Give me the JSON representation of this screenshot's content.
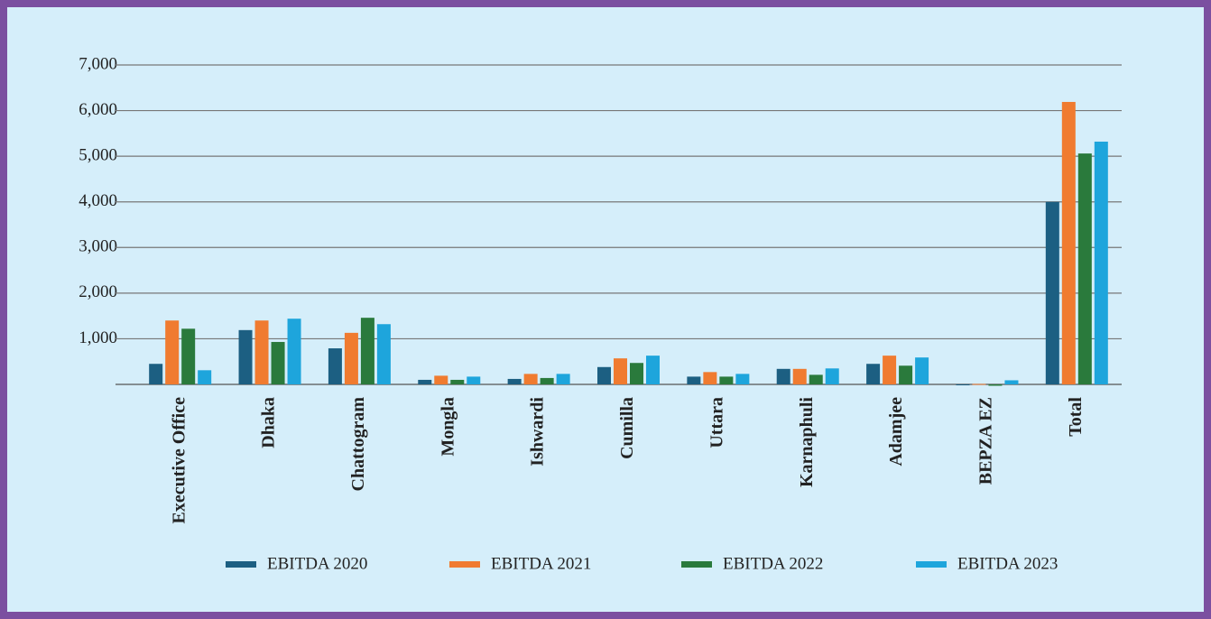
{
  "chart_data": {
    "type": "bar",
    "categories": [
      "Executive Office",
      "Dhaka",
      "Chattogram",
      "Mongla",
      "Ishwardi",
      "Cumilla",
      "Uttara",
      "Karnaphuli",
      "Adamjee",
      "BEPZA EZ",
      "Total"
    ],
    "series": [
      {
        "name": "EBITDA 2020",
        "color": "#1c5f82",
        "values": [
          450,
          1190,
          790,
          100,
          120,
          380,
          170,
          340,
          450,
          -20,
          4000
        ]
      },
      {
        "name": "EBITDA 2021",
        "color": "#f07b30",
        "values": [
          1400,
          1400,
          1130,
          190,
          230,
          570,
          270,
          340,
          630,
          10,
          6190
        ]
      },
      {
        "name": "EBITDA 2022",
        "color": "#2a7a3c",
        "values": [
          1220,
          930,
          1460,
          100,
          140,
          470,
          170,
          210,
          410,
          -30,
          5060
        ]
      },
      {
        "name": "EBITDA 2023",
        "color": "#1ea5dc",
        "values": [
          310,
          1440,
          1320,
          170,
          230,
          630,
          230,
          350,
          590,
          90,
          5320
        ]
      }
    ],
    "ylim": [
      0,
      7000
    ],
    "yticks": [
      0,
      {
        "value": 1000,
        "label": "1,000"
      },
      {
        "value": 2000,
        "label": "2,000"
      },
      {
        "value": 3000,
        "label": "3,000"
      },
      {
        "value": 4000,
        "label": "4,000"
      },
      {
        "value": 5000,
        "label": "5,000"
      },
      {
        "value": 6000,
        "label": "6,000"
      },
      {
        "value": 7000,
        "label": "7,000"
      }
    ],
    "grid": true,
    "legend": "bottom"
  }
}
